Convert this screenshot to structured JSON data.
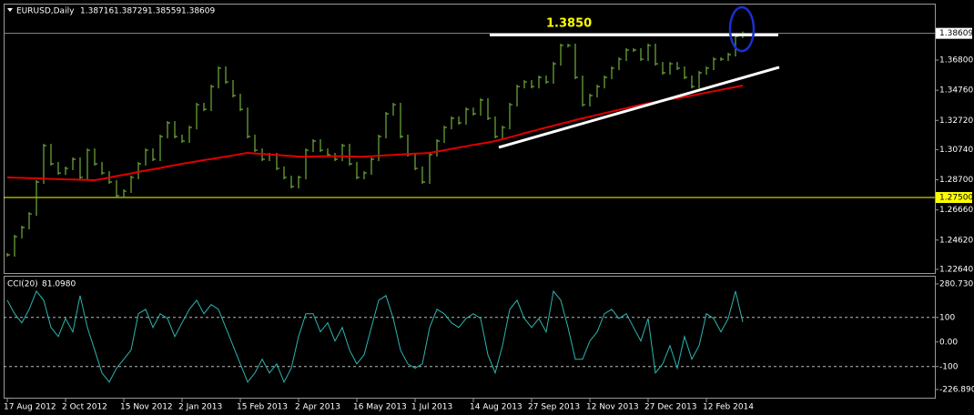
{
  "chart_data": [
    {
      "type": "line",
      "title": "EURUSD,Daily",
      "ohlc": [
        1.38716,
        1.38729,
        1.38559,
        1.38609
      ],
      "categories": [
        "17 Aug 2012",
        null,
        null,
        null,
        null,
        null,
        null,
        null,
        "2 Oct 2012",
        null,
        null,
        null,
        null,
        null,
        null,
        null,
        "15 Nov 2012",
        null,
        null,
        null,
        null,
        null,
        null,
        null,
        "2 Jan 2013",
        null,
        null,
        null,
        null,
        null,
        null,
        null,
        "15 Feb 2013",
        null,
        null,
        null,
        null,
        null,
        null,
        null,
        "2 Apr 2013",
        null,
        null,
        null,
        null,
        null,
        null,
        null,
        "16 May 2013",
        null,
        null,
        null,
        null,
        null,
        null,
        null,
        "1 Jul 2013",
        null,
        null,
        null,
        null,
        null,
        null,
        null,
        "14 Aug 2013",
        null,
        null,
        null,
        null,
        null,
        null,
        null,
        "27 Sep 2013",
        null,
        null,
        null,
        null,
        null,
        null,
        null,
        "12 Nov 2013",
        null,
        null,
        null,
        null,
        null,
        null,
        null,
        "27 Dec 2013",
        null,
        null,
        null,
        null,
        null,
        null,
        null,
        "12 Feb 2014",
        null,
        null,
        null,
        null,
        null
      ],
      "series": [
        {
          "color": "#6fae3c",
          "values": [
            1.2362,
            1.2485,
            1.2547,
            1.2639,
            1.2855,
            1.3101,
            1.2978,
            1.2916,
            1.2947,
            1.3009,
            1.2886,
            1.307,
            1.2978,
            1.2916,
            1.2855,
            1.2762,
            1.2793,
            1.2886,
            1.2978,
            1.307,
            1.3009,
            1.3163,
            1.3255,
            1.3163,
            1.3132,
            1.3224,
            1.3378,
            1.3347,
            1.3501,
            1.3625,
            1.3532,
            1.344,
            1.3347,
            1.3163,
            1.307,
            1.3009,
            1.304,
            1.2947,
            1.2886,
            1.2824,
            1.2886,
            1.307,
            1.3132,
            1.307,
            1.304,
            1.3009,
            1.3101,
            1.2978,
            1.2886,
            1.2916,
            1.3009,
            1.3163,
            1.3317,
            1.3378,
            1.3163,
            1.304,
            1.2947,
            1.2855,
            1.304,
            1.3132,
            1.3224,
            1.3286,
            1.3255,
            1.3347,
            1.3317,
            1.3409,
            1.3286,
            1.3163,
            1.3224,
            1.3378,
            1.3501,
            1.3532,
            1.3501,
            1.3563,
            1.3532,
            1.3655,
            1.3779,
            1.3779,
            1.3563,
            1.3378,
            1.344,
            1.3501,
            1.3563,
            1.3625,
            1.3686,
            1.3748,
            1.3748,
            1.3686,
            1.3779,
            1.3655,
            1.3594,
            1.3655,
            1.3625,
            1.3563,
            1.3501,
            1.3594,
            1.3625,
            1.3686,
            1.3686,
            1.3717,
            1.384,
            1.38609
          ]
        },
        {
          "color": "#e00000",
          "values": [
            1.2886,
            1.2884,
            1.2883,
            1.2881,
            1.288,
            1.2878,
            1.2876,
            1.2875,
            1.2873,
            1.2872,
            1.287,
            1.2869,
            1.2867,
            1.2876,
            1.2885,
            1.2895,
            1.2904,
            1.2913,
            1.2923,
            1.2932,
            1.2941,
            1.295,
            1.296,
            1.2969,
            1.2978,
            1.2986,
            1.2994,
            1.3003,
            1.3011,
            1.3019,
            1.3027,
            1.3035,
            1.3044,
            1.3052,
            1.3048,
            1.3045,
            1.3041,
            1.3038,
            1.3034,
            1.3031,
            1.3027,
            1.3027,
            1.3028,
            1.3029,
            1.303,
            1.303,
            1.3029,
            1.3028,
            1.3027,
            1.3027,
            1.303,
            1.3033,
            1.3036,
            1.3038,
            1.3041,
            1.3044,
            1.3047,
            1.3049,
            1.3052,
            1.3061,
            1.307,
            1.3079,
            1.3088,
            1.3097,
            1.3106,
            1.3114,
            1.3123,
            1.3132,
            1.3145,
            1.3158,
            1.3171,
            1.3185,
            1.3198,
            1.3211,
            1.3224,
            1.3236,
            1.3249,
            1.3261,
            1.3274,
            1.3286,
            1.3298,
            1.3309,
            1.3321,
            1.3332,
            1.3344,
            1.3355,
            1.3367,
            1.3378,
            1.3387,
            1.3396,
            1.3405,
            1.3414,
            1.3422,
            1.3431,
            1.344,
            1.345,
            1.346,
            1.3469,
            1.3479,
            1.3489,
            1.3498,
            1.3508
          ]
        }
      ],
      "ylim": [
        1.2239,
        1.4062
      ],
      "yticks": [
        {
          "value": 1.368,
          "label": "1.36800"
        },
        {
          "value": 1.3476,
          "label": "1.34760"
        },
        {
          "value": 1.3272,
          "label": "1.32720"
        },
        {
          "value": 1.3074,
          "label": "1.30740"
        },
        {
          "value": 1.287,
          "label": "1.28700"
        },
        {
          "value": 1.2666,
          "label": "1.26660"
        },
        {
          "value": 1.2462,
          "label": "1.24620"
        },
        {
          "value": 1.2264,
          "label": "1.22640"
        }
      ],
      "price_line": {
        "value": 1.38609,
        "label": "1.38609"
      },
      "level_line": {
        "value": 1.275,
        "label": "1.27500",
        "color": "#ffff00"
      },
      "resistance": {
        "value": 1.385,
        "label": "1.3850",
        "color": "#ffff00"
      },
      "trendline": [
        1.3089,
        1.3631
      ]
    },
    {
      "type": "line",
      "title": "CCI(20)",
      "current": {
        "value": 81.098,
        "label": "81.0980"
      },
      "series": [
        {
          "color": "#2bb5b0",
          "values": [
            170,
            115,
            78,
            133,
            207,
            170,
            59,
            22,
            96,
            41,
            189,
            59,
            -33,
            -126,
            -163,
            -107,
            -70,
            -33,
            115,
            133,
            59,
            115,
            96,
            22,
            78,
            133,
            170,
            115,
            152,
            133,
            59,
            -15,
            -89,
            -163,
            -126,
            -70,
            -126,
            -89,
            -163,
            -107,
            22,
            115,
            115,
            41,
            78,
            4,
            59,
            -33,
            -89,
            -52,
            59,
            170,
            189,
            96,
            -33,
            -89,
            -107,
            -89,
            59,
            133,
            115,
            78,
            59,
            96,
            115,
            96,
            -52,
            -126,
            -15,
            133,
            170,
            96,
            59,
            96,
            41,
            207,
            170,
            59,
            -70,
            -70,
            4,
            41,
            115,
            133,
            96,
            115,
            59,
            4,
            96,
            -126,
            -89,
            -15,
            -107,
            22,
            -70,
            -15,
            115,
            96,
            41,
            96,
            207,
            81.098
          ]
        }
      ],
      "ylim": [
        -226.8905,
        280.7301
      ],
      "yticks": [
        280.7301,
        100,
        {
          "value": 0,
          "label": "0.00"
        },
        -100,
        -226.8905
      ],
      "levels": [
        100,
        -100
      ]
    }
  ]
}
